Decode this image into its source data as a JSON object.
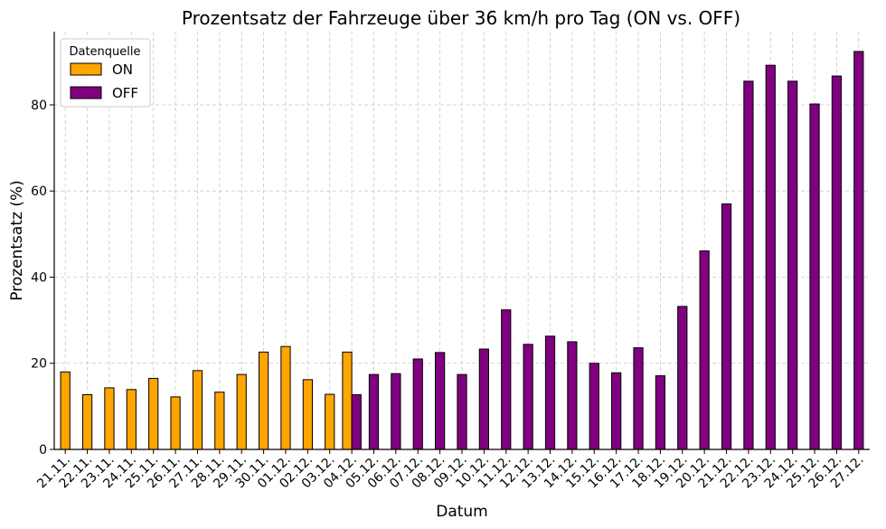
{
  "chart_data": {
    "type": "bar",
    "title": "Prozentsatz der Fahrzeuge über 36 km/h pro Tag (ON vs. OFF)",
    "xlabel": "Datum",
    "ylabel": "Prozentsatz (%)",
    "ylim": [
      0,
      97
    ],
    "yticks": [
      0,
      20,
      40,
      60,
      80
    ],
    "grid": true,
    "legend": {
      "title": "Datenquelle",
      "placement": "top-left"
    },
    "categories": [
      "21.11.",
      "22.11.",
      "23.11.",
      "24.11.",
      "25.11.",
      "26.11.",
      "27.11.",
      "28.11.",
      "29.11.",
      "30.11.",
      "01.12.",
      "02.12.",
      "03.12.",
      "04.12.",
      "05.12.",
      "06.12.",
      "07.12.",
      "08.12.",
      "09.12.",
      "10.12.",
      "11.12.",
      "12.12.",
      "13.12.",
      "14.12.",
      "15.12.",
      "16.12.",
      "17.12.",
      "18.12.",
      "19.12.",
      "20.12.",
      "21.12.",
      "22.12.",
      "23.12.",
      "24.12.",
      "25.12.",
      "26.12.",
      "27.12."
    ],
    "series": [
      {
        "name": "ON",
        "color": "#ffa500",
        "values": [
          18.0,
          12.7,
          14.3,
          13.9,
          16.5,
          12.2,
          18.3,
          13.3,
          17.4,
          22.6,
          23.9,
          16.2,
          12.8,
          22.6,
          null,
          null,
          null,
          null,
          null,
          null,
          null,
          null,
          null,
          null,
          null,
          null,
          null,
          null,
          null,
          null,
          null,
          null,
          null,
          null,
          null,
          null,
          null
        ]
      },
      {
        "name": "OFF",
        "color": "#800080",
        "values": [
          null,
          null,
          null,
          null,
          null,
          null,
          null,
          null,
          null,
          null,
          null,
          null,
          null,
          12.7,
          17.4,
          17.6,
          21.0,
          22.5,
          17.4,
          23.3,
          32.4,
          24.4,
          26.3,
          25.0,
          20.0,
          17.8,
          23.6,
          17.1,
          33.2,
          46.1,
          57.0,
          85.5,
          89.2,
          85.5,
          80.2,
          86.7,
          92.4
        ]
      }
    ]
  }
}
